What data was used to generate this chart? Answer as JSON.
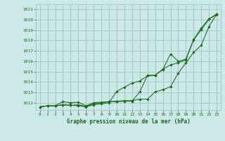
{
  "title": "Graphe pression niveau de la mer (hPa)",
  "background_color": "#cce8e8",
  "grid_color": "#99bbbb",
  "line_color": "#1a6b1a",
  "xlim": [
    -0.5,
    23.5
  ],
  "ylim": [
    1011.3,
    1021.5
  ],
  "yticks": [
    1012,
    1013,
    1014,
    1015,
    1016,
    1017,
    1018,
    1019,
    1020,
    1021
  ],
  "xticks": [
    0,
    1,
    2,
    3,
    4,
    5,
    6,
    7,
    8,
    9,
    10,
    11,
    12,
    13,
    14,
    15,
    16,
    17,
    18,
    19,
    20,
    21,
    22,
    23
  ],
  "series1": [
    1011.6,
    1011.7,
    1011.7,
    1011.8,
    1011.75,
    1011.7,
    1011.6,
    1011.8,
    1011.9,
    1012.0,
    1013.1,
    1013.5,
    1013.9,
    1014.1,
    1014.6,
    1014.65,
    1015.2,
    1016.7,
    1016.0,
    1016.2,
    1018.1,
    1019.2,
    1020.1,
    1020.5
  ],
  "series2": [
    1011.6,
    1011.7,
    1011.7,
    1012.1,
    1012.0,
    1012.05,
    1011.7,
    1012.0,
    1012.05,
    1012.1,
    1012.15,
    1012.2,
    1012.2,
    1012.35,
    1012.35,
    1013.05,
    1013.25,
    1013.55,
    1014.85,
    1015.85,
    1016.85,
    1017.55,
    1019.35,
    1020.55
  ],
  "series3": [
    1011.6,
    1011.7,
    1011.7,
    1011.8,
    1011.75,
    1011.8,
    1011.65,
    1011.9,
    1012.0,
    1012.1,
    1012.1,
    1012.15,
    1012.15,
    1013.05,
    1014.65,
    1014.65,
    1015.25,
    1015.65,
    1015.85,
    1016.15,
    1018.05,
    1019.05,
    1020.05,
    1020.55
  ]
}
